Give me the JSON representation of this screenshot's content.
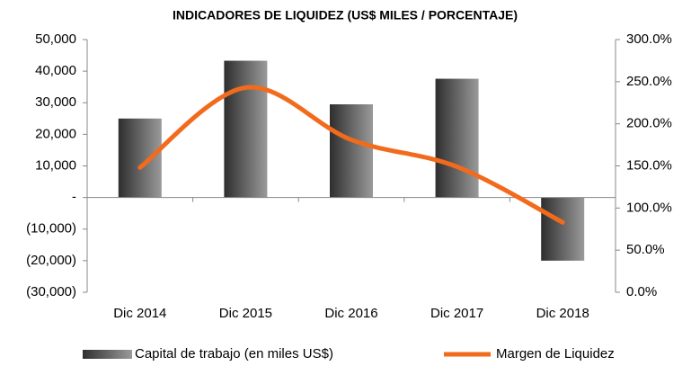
{
  "chart_data": {
    "type": "bar-line",
    "title": "INDICADORES DE LIQUIDEZ (US$ MILES / PORCENTAJE)",
    "categories": [
      "Dic 2014",
      "Dic 2015",
      "Dic 2016",
      "Dic 2017",
      "Dic 2018"
    ],
    "series": [
      {
        "name": "Capital de trabajo (en miles US$)",
        "type": "bar",
        "color": "#555555",
        "values": [
          25000,
          43300,
          29500,
          37600,
          -20000
        ]
      },
      {
        "name": "Margen de Liquidez",
        "type": "line",
        "axis": "y2",
        "color": "#f26b1d",
        "values": [
          148,
          243,
          181,
          149,
          83
        ]
      }
    ],
    "ylim": [
      -30000,
      50000
    ],
    "yticks": [
      {
        "value": -30000,
        "label": "(30,000)"
      },
      {
        "value": -20000,
        "label": "(20,000)"
      },
      {
        "value": -10000,
        "label": "(10,000)"
      },
      {
        "value": 0,
        "label": "-"
      },
      {
        "value": 10000,
        "label": "10,000"
      },
      {
        "value": 20000,
        "label": "20,000"
      },
      {
        "value": 30000,
        "label": "30,000"
      },
      {
        "value": 40000,
        "label": "40,000"
      },
      {
        "value": 50000,
        "label": "50,000"
      }
    ],
    "y2lim": [
      0,
      300
    ],
    "y2ticks": [
      {
        "value": 0,
        "label": "0.0%"
      },
      {
        "value": 50,
        "label": "50.0%"
      },
      {
        "value": 100,
        "label": "100.0%"
      },
      {
        "value": 150,
        "label": "150.0%"
      },
      {
        "value": 200,
        "label": "200.0%"
      },
      {
        "value": 250,
        "label": "250.0%"
      },
      {
        "value": 300,
        "label": "300.0%"
      }
    ],
    "grid": false,
    "legend": "bottom"
  }
}
